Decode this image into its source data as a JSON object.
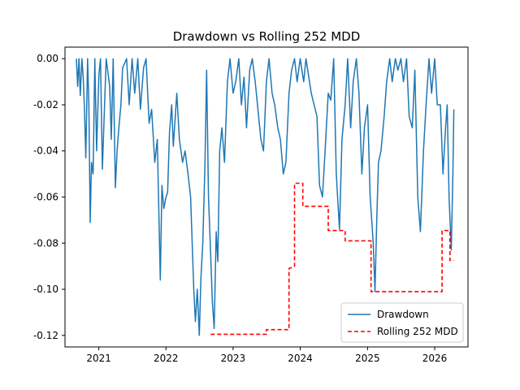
{
  "chart_data": {
    "type": "line",
    "title": "Drawdown vs Rolling 252 MDD",
    "xlabel": "",
    "ylabel": "",
    "x_ticks": [
      "2021",
      "2022",
      "2023",
      "2024",
      "2025",
      "2026"
    ],
    "y_ticks": [
      "0.00",
      "-0.02",
      "-0.04",
      "-0.06",
      "-0.08",
      "-0.10",
      "-0.12"
    ],
    "xlim": [
      "2020-07-01",
      "2026-07-01"
    ],
    "ylim": [
      -0.125,
      0.005
    ],
    "grid": false,
    "legend_position": "lower right",
    "series": [
      {
        "name": "Drawdown",
        "color": "#1f77b4",
        "style": "solid",
        "points": [
          [
            "2020-09-01",
            0.0
          ],
          [
            "2020-09-08",
            -0.012
          ],
          [
            "2020-09-15",
            0.0
          ],
          [
            "2020-09-22",
            -0.016
          ],
          [
            "2020-10-01",
            0.0
          ],
          [
            "2020-10-08",
            -0.008
          ],
          [
            "2020-10-15",
            -0.022
          ],
          [
            "2020-10-22",
            -0.043
          ],
          [
            "2020-11-01",
            0.0
          ],
          [
            "2020-11-08",
            -0.02
          ],
          [
            "2020-11-15",
            -0.071
          ],
          [
            "2020-11-22",
            -0.045
          ],
          [
            "2020-12-01",
            -0.05
          ],
          [
            "2020-12-10",
            0.0
          ],
          [
            "2020-12-20",
            -0.04
          ],
          [
            "2021-01-01",
            -0.007
          ],
          [
            "2021-01-10",
            0.0
          ],
          [
            "2021-01-20",
            -0.048
          ],
          [
            "2021-02-01",
            -0.02
          ],
          [
            "2021-02-10",
            0.0
          ],
          [
            "2021-03-01",
            -0.012
          ],
          [
            "2021-03-10",
            -0.035
          ],
          [
            "2021-03-20",
            0.0
          ],
          [
            "2021-04-01",
            -0.056
          ],
          [
            "2021-04-10",
            -0.04
          ],
          [
            "2021-04-20",
            -0.03
          ],
          [
            "2021-05-01",
            -0.02
          ],
          [
            "2021-05-10",
            -0.004
          ],
          [
            "2021-06-01",
            0.0
          ],
          [
            "2021-06-15",
            -0.02
          ],
          [
            "2021-07-01",
            0.0
          ],
          [
            "2021-07-15",
            -0.015
          ],
          [
            "2021-08-01",
            0.0
          ],
          [
            "2021-08-15",
            -0.022
          ],
          [
            "2021-09-01",
            -0.004
          ],
          [
            "2021-09-15",
            0.0
          ],
          [
            "2021-10-01",
            -0.028
          ],
          [
            "2021-10-15",
            -0.022
          ],
          [
            "2021-11-01",
            -0.045
          ],
          [
            "2021-11-15",
            -0.035
          ],
          [
            "2021-12-01",
            -0.096
          ],
          [
            "2021-12-10",
            -0.055
          ],
          [
            "2021-12-20",
            -0.065
          ],
          [
            "2022-01-01",
            -0.06
          ],
          [
            "2022-01-10",
            -0.058
          ],
          [
            "2022-01-20",
            -0.032
          ],
          [
            "2022-02-01",
            -0.02
          ],
          [
            "2022-02-10",
            -0.038
          ],
          [
            "2022-03-01",
            -0.015
          ],
          [
            "2022-03-15",
            -0.035
          ],
          [
            "2022-04-01",
            -0.045
          ],
          [
            "2022-04-15",
            -0.04
          ],
          [
            "2022-05-01",
            -0.05
          ],
          [
            "2022-05-15",
            -0.06
          ],
          [
            "2022-06-01",
            -0.1
          ],
          [
            "2022-06-10",
            -0.114
          ],
          [
            "2022-06-20",
            -0.1
          ],
          [
            "2022-07-01",
            -0.12
          ],
          [
            "2022-07-10",
            -0.095
          ],
          [
            "2022-07-20",
            -0.08
          ],
          [
            "2022-08-01",
            -0.045
          ],
          [
            "2022-08-10",
            -0.005
          ],
          [
            "2022-08-20",
            -0.06
          ],
          [
            "2022-09-01",
            -0.085
          ],
          [
            "2022-09-10",
            -0.105
          ],
          [
            "2022-09-20",
            -0.117
          ],
          [
            "2022-10-01",
            -0.075
          ],
          [
            "2022-10-10",
            -0.088
          ],
          [
            "2022-10-20",
            -0.04
          ],
          [
            "2022-11-01",
            -0.03
          ],
          [
            "2022-11-15",
            -0.045
          ],
          [
            "2022-12-01",
            -0.01
          ],
          [
            "2022-12-15",
            0.0
          ],
          [
            "2023-01-01",
            -0.015
          ],
          [
            "2023-01-15",
            -0.01
          ],
          [
            "2023-02-01",
            0.0
          ],
          [
            "2023-02-15",
            -0.02
          ],
          [
            "2023-03-01",
            -0.008
          ],
          [
            "2023-03-15",
            -0.03
          ],
          [
            "2023-04-01",
            -0.005
          ],
          [
            "2023-04-15",
            0.0
          ],
          [
            "2023-05-01",
            -0.01
          ],
          [
            "2023-06-01",
            -0.035
          ],
          [
            "2023-06-15",
            -0.04
          ],
          [
            "2023-07-01",
            -0.01
          ],
          [
            "2023-07-15",
            0.0
          ],
          [
            "2023-08-01",
            -0.015
          ],
          [
            "2023-08-15",
            -0.02
          ],
          [
            "2023-09-01",
            -0.03
          ],
          [
            "2023-09-15",
            -0.035
          ],
          [
            "2023-10-01",
            -0.05
          ],
          [
            "2023-10-15",
            -0.045
          ],
          [
            "2023-11-01",
            -0.015
          ],
          [
            "2023-11-15",
            -0.005
          ],
          [
            "2023-12-01",
            0.0
          ],
          [
            "2023-12-15",
            -0.01
          ],
          [
            "2024-01-01",
            0.0
          ],
          [
            "2024-01-10",
            -0.005
          ],
          [
            "2024-01-20",
            -0.01
          ],
          [
            "2024-02-01",
            0.0
          ],
          [
            "2024-03-01",
            -0.015
          ],
          [
            "2024-04-01",
            -0.025
          ],
          [
            "2024-04-15",
            -0.055
          ],
          [
            "2024-05-01",
            -0.06
          ],
          [
            "2024-05-15",
            -0.04
          ],
          [
            "2024-06-01",
            -0.015
          ],
          [
            "2024-06-15",
            -0.018
          ],
          [
            "2024-07-01",
            0.0
          ],
          [
            "2024-07-15",
            -0.05
          ],
          [
            "2024-08-01",
            -0.074
          ],
          [
            "2024-08-15",
            -0.035
          ],
          [
            "2024-09-01",
            -0.02
          ],
          [
            "2024-09-15",
            0.0
          ],
          [
            "2024-10-01",
            -0.03
          ],
          [
            "2024-10-15",
            -0.01
          ],
          [
            "2024-11-01",
            0.0
          ],
          [
            "2024-11-15",
            -0.015
          ],
          [
            "2024-12-01",
            -0.05
          ],
          [
            "2024-12-15",
            -0.03
          ],
          [
            "2025-01-01",
            -0.02
          ],
          [
            "2025-01-15",
            -0.06
          ],
          [
            "2025-02-01",
            -0.08
          ],
          [
            "2025-02-10",
            -0.101
          ],
          [
            "2025-02-20",
            -0.07
          ],
          [
            "2025-03-01",
            -0.045
          ],
          [
            "2025-03-15",
            -0.04
          ],
          [
            "2025-04-01",
            -0.025
          ],
          [
            "2025-04-15",
            -0.01
          ],
          [
            "2025-05-01",
            0.0
          ],
          [
            "2025-05-15",
            -0.01
          ],
          [
            "2025-06-01",
            0.0
          ],
          [
            "2025-06-15",
            -0.005
          ],
          [
            "2025-07-01",
            0.0
          ],
          [
            "2025-07-15",
            -0.01
          ],
          [
            "2025-08-01",
            0.0
          ],
          [
            "2025-08-15",
            -0.025
          ],
          [
            "2025-09-01",
            -0.03
          ],
          [
            "2025-09-15",
            -0.005
          ],
          [
            "2025-10-01",
            -0.06
          ],
          [
            "2025-10-15",
            -0.075
          ],
          [
            "2025-11-01",
            -0.04
          ],
          [
            "2025-11-15",
            -0.02
          ],
          [
            "2025-12-01",
            0.0
          ],
          [
            "2025-12-15",
            -0.015
          ],
          [
            "2026-01-01",
            0.0
          ],
          [
            "2026-01-15",
            -0.02
          ],
          [
            "2026-02-01",
            -0.02
          ],
          [
            "2026-02-15",
            -0.05
          ],
          [
            "2026-03-01",
            -0.03
          ],
          [
            "2026-03-10",
            -0.02
          ],
          [
            "2026-03-20",
            -0.06
          ],
          [
            "2026-04-01",
            -0.083
          ],
          [
            "2026-04-10",
            -0.05
          ],
          [
            "2026-04-15",
            -0.022
          ]
        ]
      },
      {
        "name": "Rolling 252 MDD",
        "color": "#ff0000",
        "style": "dashed",
        "points": [
          [
            "2022-09-01",
            -0.1195
          ],
          [
            "2023-07-01",
            -0.1195
          ],
          [
            "2023-07-01",
            -0.1175
          ],
          [
            "2023-11-01",
            -0.1175
          ],
          [
            "2023-11-01",
            -0.091
          ],
          [
            "2023-12-01",
            -0.09
          ],
          [
            "2023-12-01",
            -0.054
          ],
          [
            "2024-01-15",
            -0.054
          ],
          [
            "2024-01-15",
            -0.064
          ],
          [
            "2024-06-01",
            -0.064
          ],
          [
            "2024-06-01",
            -0.0745
          ],
          [
            "2024-09-01",
            -0.0745
          ],
          [
            "2024-09-01",
            -0.079
          ],
          [
            "2025-01-20",
            -0.079
          ],
          [
            "2025-01-20",
            -0.101
          ],
          [
            "2026-02-10",
            -0.101
          ],
          [
            "2026-02-10",
            -0.0745
          ],
          [
            "2026-03-25",
            -0.0745
          ],
          [
            "2026-03-25",
            -0.0875
          ],
          [
            "2026-04-15",
            -0.0875
          ]
        ]
      }
    ]
  }
}
